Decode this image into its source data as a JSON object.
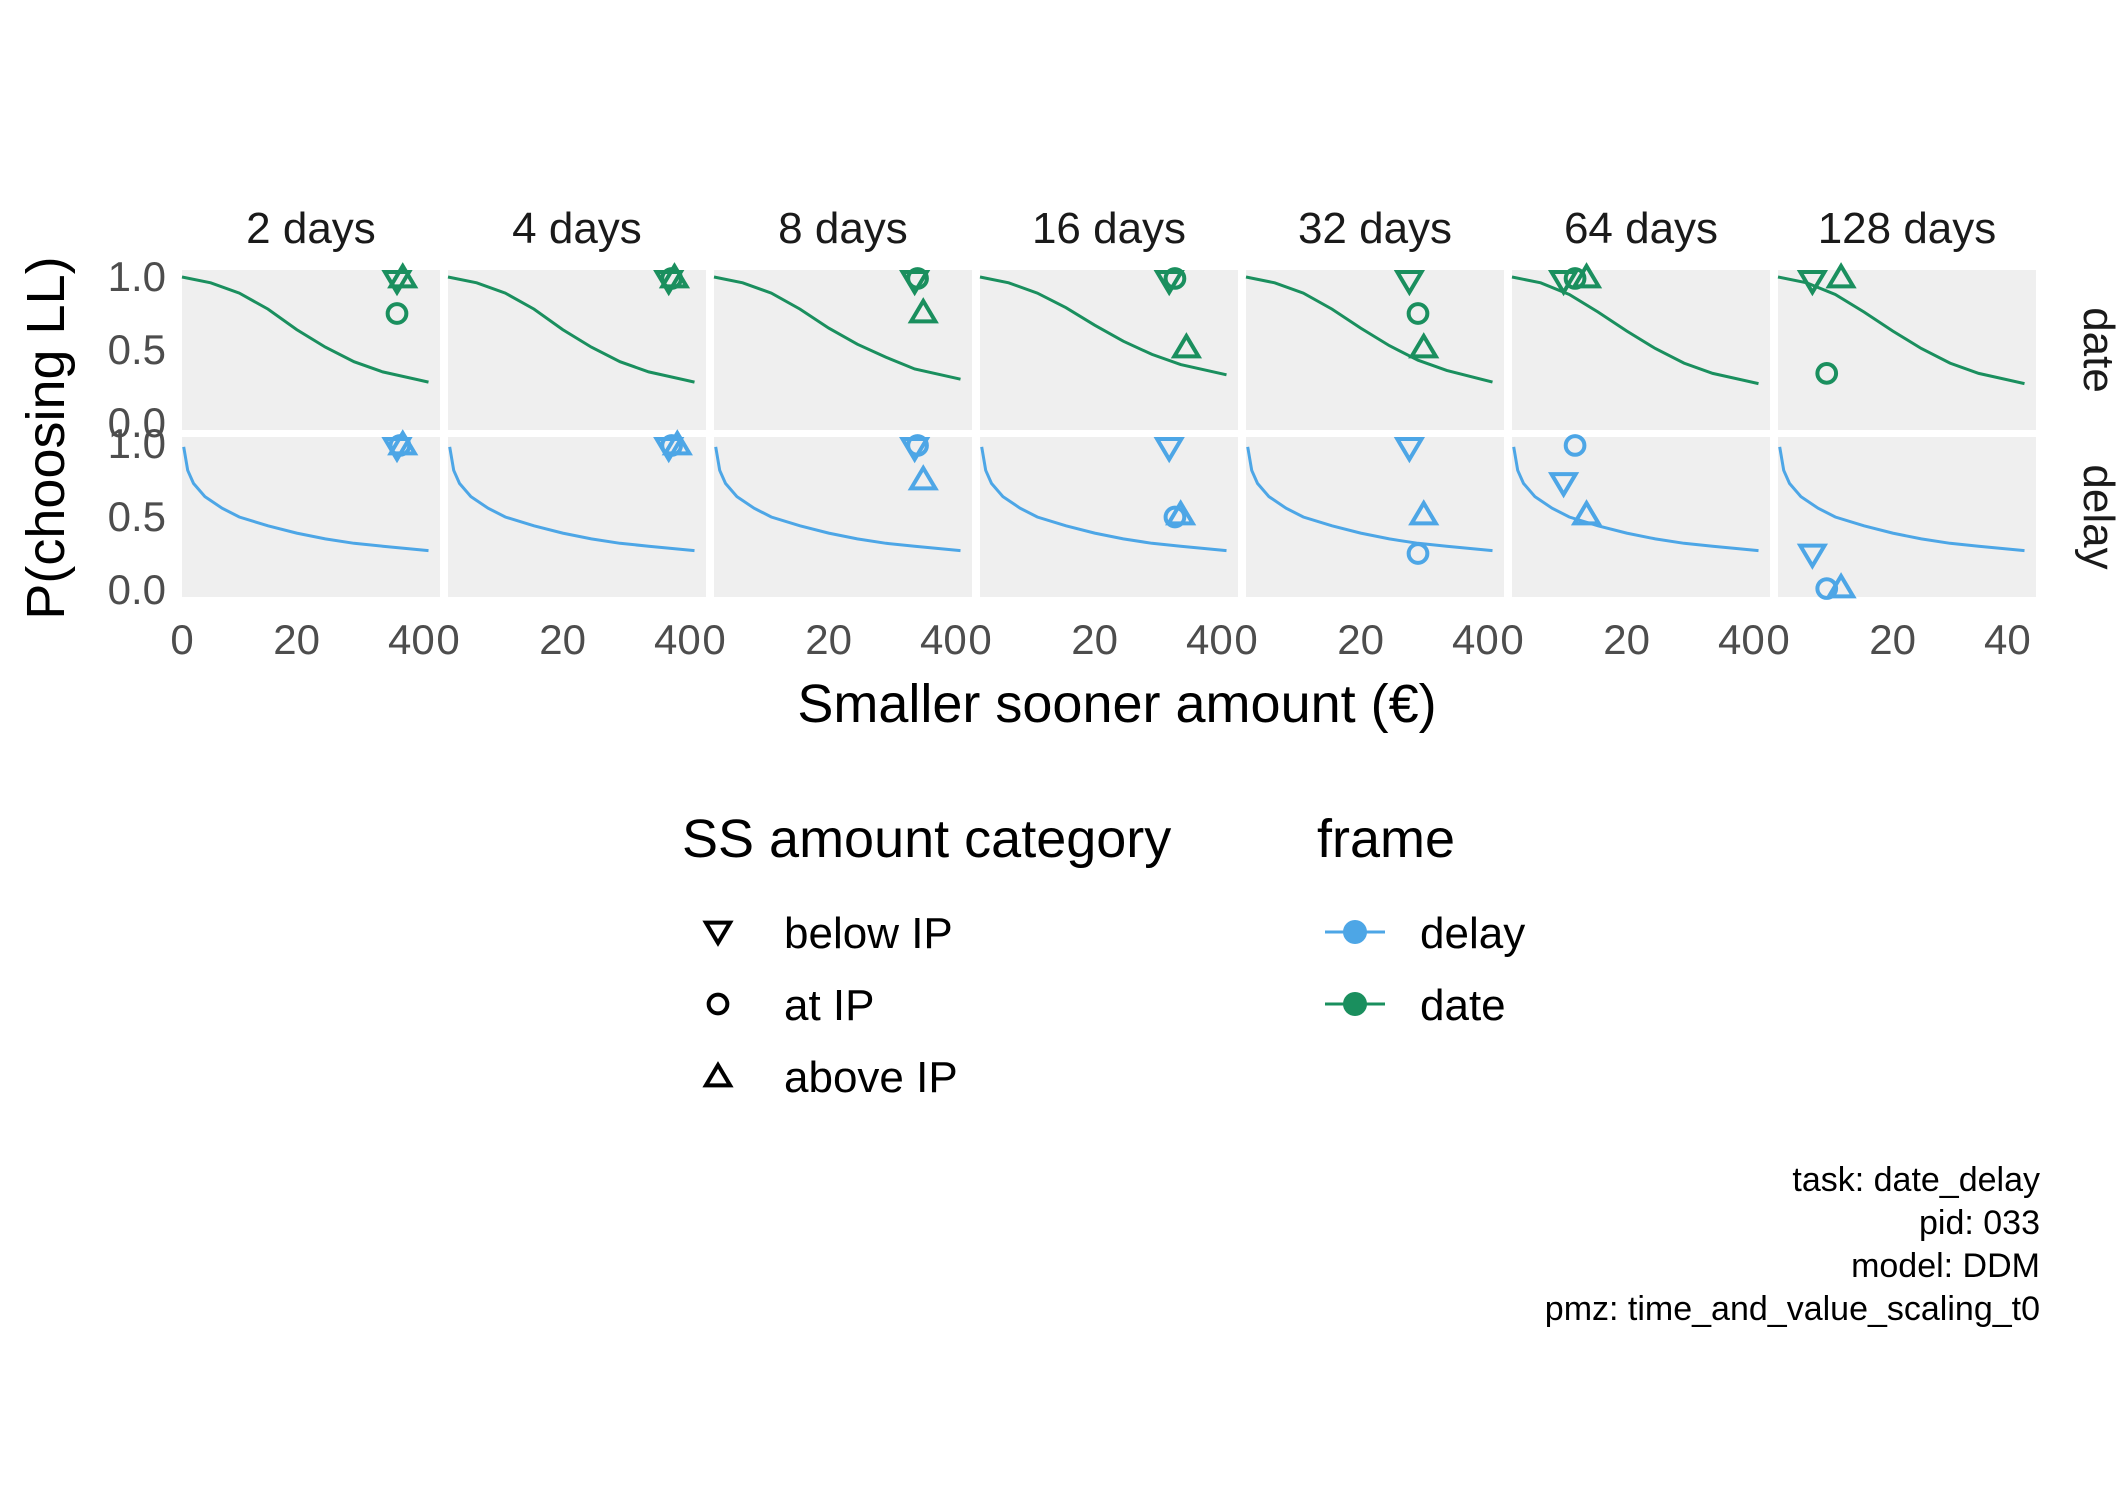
{
  "chart_data": {
    "type": "scatter",
    "xlabel": "Smaller sooner amount (€)",
    "ylabel": "P(choosing LL)",
    "xlim": [
      0,
      45
    ],
    "ylim": [
      0,
      1
    ],
    "x_ticks": [
      0,
      20,
      40
    ],
    "y_ticks": [
      "0.0",
      "0.5",
      "1.0"
    ],
    "columns": [
      "2 days",
      "4 days",
      "8 days",
      "16 days",
      "32 days",
      "64 days",
      "128 days"
    ],
    "rows": [
      "date",
      "delay"
    ],
    "grid": false,
    "legend_placement": "bottom",
    "colors": {
      "delay": "#4da6e6",
      "date": "#1a8f5e"
    },
    "legend": {
      "shape": {
        "title": "SS amount category",
        "items": [
          {
            "key": "below",
            "label": "below IP"
          },
          {
            "key": "at",
            "label": "at IP"
          },
          {
            "key": "above",
            "label": "above IP"
          }
        ]
      },
      "color": {
        "title": "frame",
        "items": [
          {
            "key": "delay",
            "label": "delay"
          },
          {
            "key": "date",
            "label": "date"
          }
        ]
      }
    },
    "curves": {
      "date": [
        [
          [
            0,
            1.0
          ],
          [
            5,
            0.96
          ],
          [
            10,
            0.89
          ],
          [
            15,
            0.78
          ],
          [
            20,
            0.64
          ],
          [
            25,
            0.52
          ],
          [
            30,
            0.42
          ],
          [
            35,
            0.35
          ],
          [
            43,
            0.28
          ]
        ],
        [
          [
            0,
            1.0
          ],
          [
            5,
            0.96
          ],
          [
            10,
            0.89
          ],
          [
            15,
            0.78
          ],
          [
            20,
            0.64
          ],
          [
            25,
            0.52
          ],
          [
            30,
            0.42
          ],
          [
            35,
            0.35
          ],
          [
            43,
            0.28
          ]
        ],
        [
          [
            0,
            1.0
          ],
          [
            5,
            0.96
          ],
          [
            10,
            0.89
          ],
          [
            15,
            0.78
          ],
          [
            20,
            0.65
          ],
          [
            25,
            0.54
          ],
          [
            30,
            0.45
          ],
          [
            35,
            0.37
          ],
          [
            43,
            0.3
          ]
        ],
        [
          [
            0,
            1.0
          ],
          [
            5,
            0.96
          ],
          [
            10,
            0.89
          ],
          [
            15,
            0.79
          ],
          [
            20,
            0.67
          ],
          [
            25,
            0.56
          ],
          [
            30,
            0.47
          ],
          [
            35,
            0.4
          ],
          [
            43,
            0.33
          ]
        ],
        [
          [
            0,
            1.0
          ],
          [
            5,
            0.96
          ],
          [
            10,
            0.89
          ],
          [
            15,
            0.78
          ],
          [
            20,
            0.65
          ],
          [
            25,
            0.53
          ],
          [
            30,
            0.43
          ],
          [
            35,
            0.36
          ],
          [
            43,
            0.28
          ]
        ],
        [
          [
            0,
            1.0
          ],
          [
            5,
            0.96
          ],
          [
            10,
            0.88
          ],
          [
            15,
            0.76
          ],
          [
            20,
            0.63
          ],
          [
            25,
            0.51
          ],
          [
            30,
            0.41
          ],
          [
            35,
            0.34
          ],
          [
            43,
            0.27
          ]
        ],
        [
          [
            0,
            1.0
          ],
          [
            5,
            0.96
          ],
          [
            10,
            0.88
          ],
          [
            15,
            0.76
          ],
          [
            20,
            0.63
          ],
          [
            25,
            0.51
          ],
          [
            30,
            0.41
          ],
          [
            35,
            0.34
          ],
          [
            43,
            0.27
          ]
        ]
      ],
      "delay": [
        [
          [
            0.3,
            0.98
          ],
          [
            1,
            0.82
          ],
          [
            2,
            0.73
          ],
          [
            4,
            0.64
          ],
          [
            7,
            0.56
          ],
          [
            10,
            0.5
          ],
          [
            15,
            0.44
          ],
          [
            20,
            0.39
          ],
          [
            25,
            0.35
          ],
          [
            30,
            0.32
          ],
          [
            35,
            0.3
          ],
          [
            43,
            0.27
          ]
        ],
        [
          [
            0.3,
            0.98
          ],
          [
            1,
            0.82
          ],
          [
            2,
            0.73
          ],
          [
            4,
            0.64
          ],
          [
            7,
            0.56
          ],
          [
            10,
            0.5
          ],
          [
            15,
            0.44
          ],
          [
            20,
            0.39
          ],
          [
            25,
            0.35
          ],
          [
            30,
            0.32
          ],
          [
            35,
            0.3
          ],
          [
            43,
            0.27
          ]
        ],
        [
          [
            0.3,
            0.98
          ],
          [
            1,
            0.82
          ],
          [
            2,
            0.73
          ],
          [
            4,
            0.64
          ],
          [
            7,
            0.56
          ],
          [
            10,
            0.5
          ],
          [
            15,
            0.44
          ],
          [
            20,
            0.39
          ],
          [
            25,
            0.35
          ],
          [
            30,
            0.32
          ],
          [
            35,
            0.3
          ],
          [
            43,
            0.27
          ]
        ],
        [
          [
            0.3,
            0.98
          ],
          [
            1,
            0.82
          ],
          [
            2,
            0.73
          ],
          [
            4,
            0.64
          ],
          [
            7,
            0.56
          ],
          [
            10,
            0.5
          ],
          [
            15,
            0.44
          ],
          [
            20,
            0.39
          ],
          [
            25,
            0.35
          ],
          [
            30,
            0.32
          ],
          [
            35,
            0.3
          ],
          [
            43,
            0.27
          ]
        ],
        [
          [
            0.3,
            0.98
          ],
          [
            1,
            0.82
          ],
          [
            2,
            0.73
          ],
          [
            4,
            0.64
          ],
          [
            7,
            0.56
          ],
          [
            10,
            0.5
          ],
          [
            15,
            0.44
          ],
          [
            20,
            0.39
          ],
          [
            25,
            0.35
          ],
          [
            30,
            0.32
          ],
          [
            35,
            0.3
          ],
          [
            43,
            0.27
          ]
        ],
        [
          [
            0.3,
            0.98
          ],
          [
            1,
            0.82
          ],
          [
            2,
            0.73
          ],
          [
            4,
            0.64
          ],
          [
            7,
            0.56
          ],
          [
            10,
            0.5
          ],
          [
            15,
            0.44
          ],
          [
            20,
            0.39
          ],
          [
            25,
            0.35
          ],
          [
            30,
            0.32
          ],
          [
            35,
            0.3
          ],
          [
            43,
            0.27
          ]
        ],
        [
          [
            0.3,
            0.98
          ],
          [
            1,
            0.82
          ],
          [
            2,
            0.73
          ],
          [
            4,
            0.64
          ],
          [
            7,
            0.56
          ],
          [
            10,
            0.5
          ],
          [
            15,
            0.44
          ],
          [
            20,
            0.39
          ],
          [
            25,
            0.35
          ],
          [
            30,
            0.32
          ],
          [
            35,
            0.3
          ],
          [
            43,
            0.27
          ]
        ]
      ]
    },
    "points": {
      "date": [
        [
          {
            "cat": "below",
            "x": 37.5,
            "y": 0.97
          },
          {
            "cat": "at",
            "x": 37.5,
            "y": 0.75
          },
          {
            "cat": "above",
            "x": 38.5,
            "y": 1.0
          }
        ],
        [
          {
            "cat": "below",
            "x": 38.5,
            "y": 0.97
          },
          {
            "cat": "at",
            "x": 39.0,
            "y": 0.99
          },
          {
            "cat": "above",
            "x": 39.5,
            "y": 1.0
          }
        ],
        [
          {
            "cat": "below",
            "x": 35.0,
            "y": 0.97
          },
          {
            "cat": "at",
            "x": 35.5,
            "y": 0.99
          },
          {
            "cat": "above",
            "x": 36.5,
            "y": 0.76
          }
        ],
        [
          {
            "cat": "below",
            "x": 33.0,
            "y": 0.97
          },
          {
            "cat": "at",
            "x": 34.0,
            "y": 0.99
          },
          {
            "cat": "above",
            "x": 36.0,
            "y": 0.52
          }
        ],
        [
          {
            "cat": "below",
            "x": 28.5,
            "y": 0.97
          },
          {
            "cat": "at",
            "x": 30.0,
            "y": 0.75
          },
          {
            "cat": "above",
            "x": 31.0,
            "y": 0.52
          }
        ],
        [
          {
            "cat": "below",
            "x": 9.0,
            "y": 0.97
          },
          {
            "cat": "at",
            "x": 11.0,
            "y": 0.99
          },
          {
            "cat": "above",
            "x": 13.0,
            "y": 1.0
          }
        ],
        [
          {
            "cat": "below",
            "x": 6.0,
            "y": 0.97
          },
          {
            "cat": "at",
            "x": 8.5,
            "y": 0.34
          },
          {
            "cat": "above",
            "x": 11.0,
            "y": 1.0
          }
        ]
      ],
      "delay": [
        [
          {
            "cat": "below",
            "x": 37.5,
            "y": 0.97
          },
          {
            "cat": "at",
            "x": 38.0,
            "y": 0.99
          },
          {
            "cat": "above",
            "x": 38.5,
            "y": 1.0
          }
        ],
        [
          {
            "cat": "below",
            "x": 38.5,
            "y": 0.97
          },
          {
            "cat": "at",
            "x": 39.0,
            "y": 0.99
          },
          {
            "cat": "above",
            "x": 40.0,
            "y": 1.0
          }
        ],
        [
          {
            "cat": "below",
            "x": 35.0,
            "y": 0.97
          },
          {
            "cat": "at",
            "x": 35.5,
            "y": 0.99
          },
          {
            "cat": "above",
            "x": 36.5,
            "y": 0.76
          }
        ],
        [
          {
            "cat": "below",
            "x": 33.0,
            "y": 0.97
          },
          {
            "cat": "at",
            "x": 34.0,
            "y": 0.5
          },
          {
            "cat": "above",
            "x": 35.0,
            "y": 0.52
          }
        ],
        [
          {
            "cat": "below",
            "x": 28.5,
            "y": 0.97
          },
          {
            "cat": "at",
            "x": 30.0,
            "y": 0.25
          },
          {
            "cat": "above",
            "x": 31.0,
            "y": 0.52
          }
        ],
        [
          {
            "cat": "below",
            "x": 9.0,
            "y": 0.73
          },
          {
            "cat": "at",
            "x": 11.0,
            "y": 0.99
          },
          {
            "cat": "above",
            "x": 13.0,
            "y": 0.52
          }
        ],
        [
          {
            "cat": "below",
            "x": 6.0,
            "y": 0.24
          },
          {
            "cat": "at",
            "x": 8.5,
            "y": 0.01
          },
          {
            "cat": "above",
            "x": 11.0,
            "y": 0.02
          }
        ]
      ]
    },
    "caption": [
      "task: date_delay",
      "pid: 033",
      "model: DDM",
      "pmz: time_and_value_scaling_t0"
    ]
  }
}
